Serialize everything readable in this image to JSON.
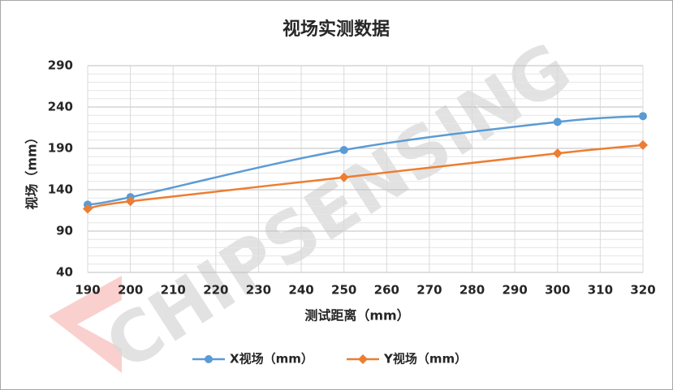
{
  "chart_data": {
    "type": "line",
    "title": "视场实测数据",
    "x_label": "测试距离（mm）",
    "y_label": "视场（mm）",
    "watermark": "CHIPSENSING",
    "x": [
      190,
      200,
      250,
      300,
      320
    ],
    "series": [
      {
        "name": "X视场（mm）",
        "color": "#5b9bd5",
        "marker": "circle",
        "values": [
          122,
          131,
          188,
          222,
          229
        ]
      },
      {
        "name": "Y视场（mm）",
        "color": "#ed7d31",
        "marker": "diamond",
        "values": [
          117,
          126,
          155,
          184,
          194
        ]
      }
    ],
    "xlim": [
      190,
      320
    ],
    "xticks": [
      190,
      200,
      210,
      220,
      230,
      240,
      250,
      260,
      270,
      280,
      290,
      300,
      310,
      320
    ],
    "ylim": [
      40,
      290
    ],
    "yticks": [
      40,
      90,
      140,
      190,
      240,
      290
    ],
    "yminorticks": [
      50,
      60,
      70,
      80,
      100,
      110,
      120,
      130,
      150,
      160,
      170,
      180,
      200,
      210,
      220,
      230,
      250,
      260,
      270,
      280
    ],
    "grid": true,
    "smooth": true,
    "legend": "bottom"
  }
}
